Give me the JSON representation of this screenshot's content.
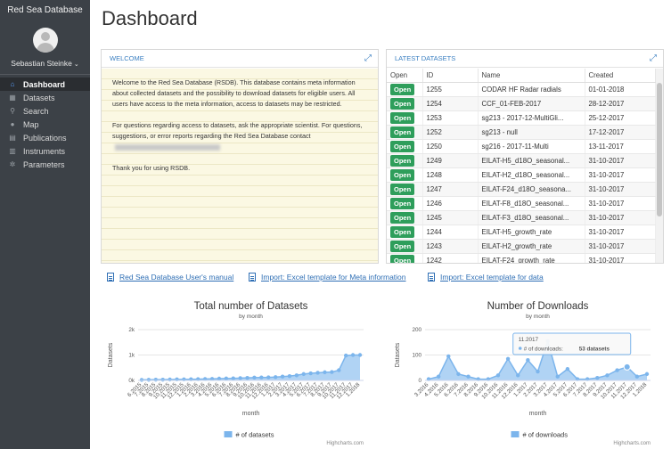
{
  "app": {
    "title": "Red Sea Database",
    "user": "Sebastian Steinke"
  },
  "sidebar": {
    "items": [
      {
        "label": "Dashboard",
        "icon": "home-icon",
        "glyph": "⌂",
        "active": true
      },
      {
        "label": "Datasets",
        "icon": "table-icon",
        "glyph": "▦",
        "active": false
      },
      {
        "label": "Search",
        "icon": "search-icon",
        "glyph": "⚲",
        "active": false
      },
      {
        "label": "Map",
        "icon": "map-marker-icon",
        "glyph": "●",
        "active": false
      },
      {
        "label": "Publications",
        "icon": "document-icon",
        "glyph": "▤",
        "active": false
      },
      {
        "label": "Instruments",
        "icon": "instruments-icon",
        "glyph": "▥",
        "active": false
      },
      {
        "label": "Parameters",
        "icon": "gear-icon",
        "glyph": "✲",
        "active": false
      }
    ]
  },
  "page_title": "Dashboard",
  "welcome": {
    "title": "WELCOME",
    "p1": "Welcome to the Red Sea Database (RSDB). This database contains meta information about collected datasets and the possibility to download datasets for eligible users. All users have access to the meta information, access to datasets may be restricted.",
    "p2": "For questions regarding access to datasets, ask the appropriate scientist. For questions, suggestions, or error reports regarding the Red Sea Database contact",
    "p3": "Thank you for using RSDB."
  },
  "latest": {
    "title": "LATEST DATASETS",
    "columns": [
      "Open",
      "ID",
      "Name",
      "Created"
    ],
    "open_label": "Open",
    "rows": [
      {
        "id": "1255",
        "name": "CODAR HF Radar radials",
        "created": "01-01-2018"
      },
      {
        "id": "1254",
        "name": "CCF_01-FEB-2017",
        "created": "28-12-2017"
      },
      {
        "id": "1253",
        "name": "sg213 - 2017-12-MultiGli...",
        "created": "25-12-2017"
      },
      {
        "id": "1252",
        "name": "sg213 - null",
        "created": "17-12-2017"
      },
      {
        "id": "1250",
        "name": "sg216 - 2017-11-Multi",
        "created": "13-11-2017"
      },
      {
        "id": "1249",
        "name": "EILAT-H5_d18O_seasonal...",
        "created": "31-10-2017"
      },
      {
        "id": "1248",
        "name": "EILAT-H2_d18O_seasonal...",
        "created": "31-10-2017"
      },
      {
        "id": "1247",
        "name": "EILAT-F24_d18O_seasona...",
        "created": "31-10-2017"
      },
      {
        "id": "1246",
        "name": "EILAT-F8_d18O_seasonal...",
        "created": "31-10-2017"
      },
      {
        "id": "1245",
        "name": "EILAT-F3_d18O_seasonal...",
        "created": "31-10-2017"
      },
      {
        "id": "1244",
        "name": "EILAT-H5_growth_rate",
        "created": "31-10-2017"
      },
      {
        "id": "1243",
        "name": "EILAT-H2_growth_rate",
        "created": "31-10-2017"
      },
      {
        "id": "1242",
        "name": "EILAT-F24_growth_rate",
        "created": "31-10-2017"
      }
    ]
  },
  "links": [
    {
      "label": "Red Sea Database User's manual"
    },
    {
      "label": "Import: Excel template for Meta information"
    },
    {
      "label": "Import: Excel template for data"
    }
  ],
  "chart_data": [
    {
      "type": "area",
      "title": "Total number of Datasets",
      "subtitle": "by month",
      "xlabel": "month",
      "ylabel": "Datasets",
      "ylim": [
        0,
        2000
      ],
      "yticks": [
        {
          "v": 0,
          "label": "0k"
        },
        {
          "v": 1000,
          "label": "1k"
        },
        {
          "v": 2000,
          "label": "2k"
        }
      ],
      "grid": true,
      "legend": "bottom-center",
      "credit": "Highcharts.com",
      "categories": [
        "6.2015",
        "7.2015",
        "8.2015",
        "9.2015",
        "10.2015",
        "11.2015",
        "12.2015",
        "1.2016",
        "2.2016",
        "3.2016",
        "4.2016",
        "5.2016",
        "6.2016",
        "7.2016",
        "8.2016",
        "9.2016",
        "10.2016",
        "11.2016",
        "12.2016",
        "1.2017",
        "2.2017",
        "3.2017",
        "4.2017",
        "5.2017",
        "6.2017",
        "7.2017",
        "8.2017",
        "9.2017",
        "10.2017",
        "11.2017",
        "12.2017",
        "1.2018"
      ],
      "series": [
        {
          "name": "# of datasets",
          "color": "#7cb5ec",
          "values": [
            20,
            25,
            30,
            30,
            35,
            40,
            40,
            45,
            50,
            55,
            60,
            70,
            75,
            80,
            90,
            100,
            110,
            115,
            120,
            130,
            150,
            170,
            200,
            250,
            280,
            300,
            320,
            330,
            400,
            980,
            1000,
            1000
          ]
        }
      ]
    },
    {
      "type": "area",
      "title": "Number of Downloads",
      "subtitle": "by month",
      "xlabel": "month",
      "ylabel": "Datasets",
      "ylim": [
        0,
        200
      ],
      "yticks": [
        {
          "v": 0,
          "label": "0"
        },
        {
          "v": 100,
          "label": "100"
        },
        {
          "v": 200,
          "label": "200"
        }
      ],
      "grid": true,
      "legend": "bottom-center",
      "credit": "Highcharts.com",
      "categories": [
        "3.2016",
        "4.2016",
        "5.2016",
        "6.2016",
        "7.2016",
        "8.2016",
        "9.2016",
        "10.2016",
        "11.2016",
        "12.2016",
        "1.2017",
        "2.2017",
        "3.2017",
        "4.2017",
        "5.2017",
        "6.2017",
        "7.2017",
        "8.2017",
        "9.2017",
        "10.2017",
        "11.2017",
        "12.2017",
        "1.2018"
      ],
      "series": [
        {
          "name": "# of downloads",
          "color": "#7cb5ec",
          "values": [
            5,
            15,
            95,
            25,
            15,
            5,
            5,
            20,
            85,
            20,
            80,
            35,
            155,
            15,
            45,
            5,
            5,
            10,
            20,
            40,
            53,
            15,
            25
          ]
        }
      ],
      "tooltip": {
        "title": "11.2017",
        "label": "# of downloads:",
        "value": "53 datasets",
        "index": 20
      }
    }
  ]
}
